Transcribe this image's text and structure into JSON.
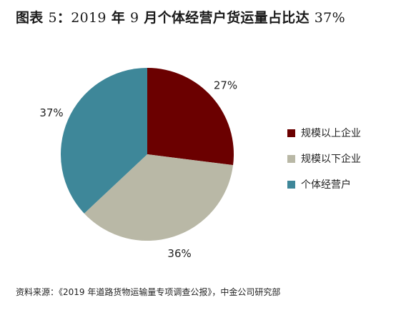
{
  "title": {
    "prefix": "图表",
    "number": "5",
    "colon": "：",
    "year": "2019",
    "year_unit": "年",
    "month": "9",
    "month_unit": "月个体经营户货运量占比达",
    "value": "37%"
  },
  "source": "资料来源：《2019 年道路货物运输量专项调查公报》，中金公司研究部",
  "chart_data": {
    "type": "pie",
    "title": "图表 5：2019 年 9 月个体经营户货运量占比达 37%",
    "start_angle_deg": 0,
    "direction": "clockwise",
    "legend_position": "right",
    "slices": [
      {
        "name": "规模以上企业",
        "value": 27,
        "label": "27%",
        "color": "#6b0000"
      },
      {
        "name": "规模以下企业",
        "value": 36,
        "label": "36%",
        "color": "#b9b8a6"
      },
      {
        "name": "个体经营户",
        "value": 37,
        "label": "37%",
        "color": "#3e8799"
      }
    ]
  }
}
